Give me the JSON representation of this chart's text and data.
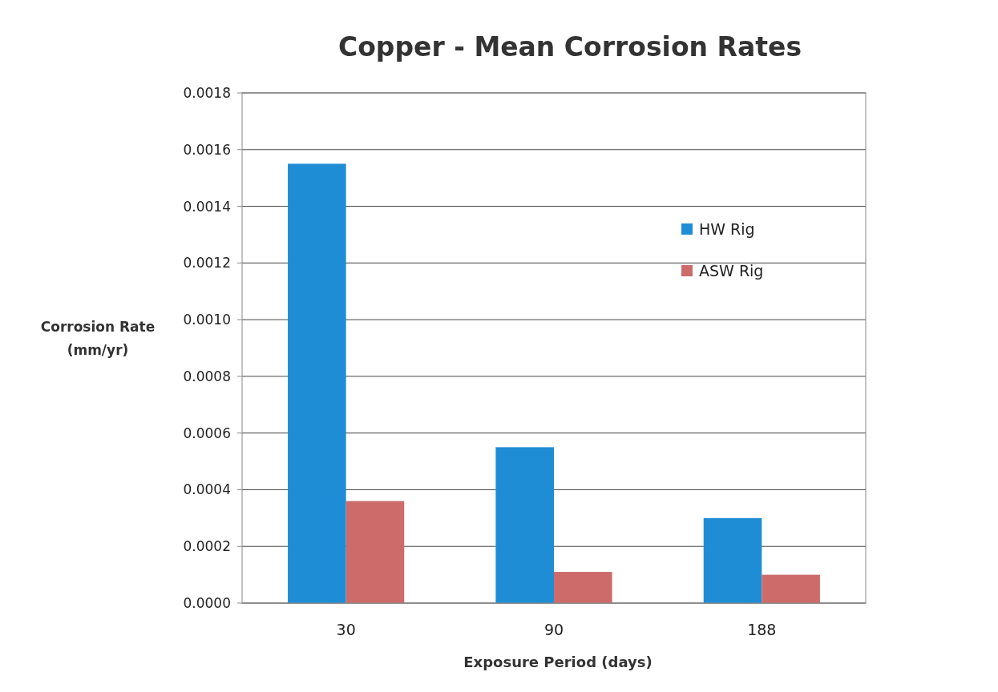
{
  "chart_data": {
    "type": "bar",
    "title": "Copper - Mean Corrosion Rates",
    "xlabel": "Exposure Period (days)",
    "ylabel": "Corrosion Rate (mm/yr)",
    "categories": [
      "30",
      "90",
      "188"
    ],
    "series": [
      {
        "name": "HW Rig",
        "color": "#1f8dd6",
        "values": [
          0.00155,
          0.00055,
          0.0003
        ]
      },
      {
        "name": "ASW Rig",
        "color": "#cd6b6b",
        "values": [
          0.00036,
          0.00011,
          0.0001
        ]
      }
    ],
    "ylim": [
      0,
      0.0018
    ],
    "yticks": [
      {
        "value": 0,
        "label": "0.0000"
      },
      {
        "value": 0.0002,
        "label": "0.0002"
      },
      {
        "value": 0.0004,
        "label": "0.0004"
      },
      {
        "value": 0.0006,
        "label": "0.0006"
      },
      {
        "value": 0.0008,
        "label": "0.0008"
      },
      {
        "value": 0.001,
        "label": "0.0010"
      },
      {
        "value": 0.0012,
        "label": "0.0012"
      },
      {
        "value": 0.0014,
        "label": "0.0014"
      },
      {
        "value": 0.0016,
        "label": "0.0016"
      },
      {
        "value": 0.0018,
        "label": "0.0018"
      }
    ],
    "grid": "y",
    "legend": "top right"
  }
}
